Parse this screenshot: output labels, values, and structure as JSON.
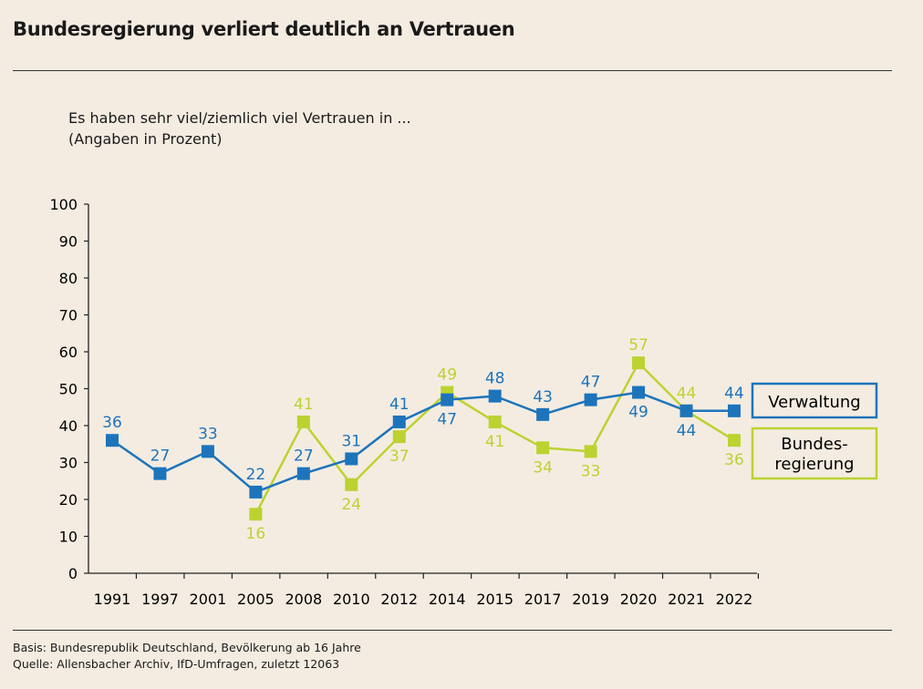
{
  "header": {
    "title": "Bundesregierung verliert deutlich an Vertrauen"
  },
  "subtitle": {
    "line1": "Es haben sehr viel/ziemlich viel Vertrauen in ...",
    "line2": "(Angaben in Prozent)"
  },
  "footer": {
    "basis": "Basis: Bundesrepublik Deutschland, Bevölkerung ab 16 Jahre",
    "source": "Quelle: Allensbacher Archiv, IfD-Umfragen, zuletzt 12063"
  },
  "chart_data": {
    "type": "line",
    "categories": [
      "1991",
      "1997",
      "2001",
      "2005",
      "2008",
      "2010",
      "2012",
      "2014",
      "2015",
      "2017",
      "2019",
      "2020",
      "2021",
      "2022"
    ],
    "ylim": [
      0,
      100
    ],
    "yticks": [
      0,
      10,
      20,
      30,
      40,
      50,
      60,
      70,
      80,
      90,
      100
    ],
    "grid": false,
    "legend_placement": "right",
    "series": [
      {
        "name": "Verwaltung",
        "legend_lines": [
          "Verwaltung"
        ],
        "color": "#1d74bb",
        "values": [
          36,
          27,
          33,
          22,
          27,
          31,
          41,
          47,
          48,
          43,
          47,
          49,
          44,
          44
        ]
      },
      {
        "name": "Bundes-regierung",
        "legend_lines": [
          "Bundes-",
          "regierung"
        ],
        "color": "#bcd231",
        "values": [
          null,
          null,
          null,
          16,
          41,
          24,
          37,
          49,
          41,
          34,
          33,
          57,
          44,
          36
        ]
      }
    ]
  }
}
